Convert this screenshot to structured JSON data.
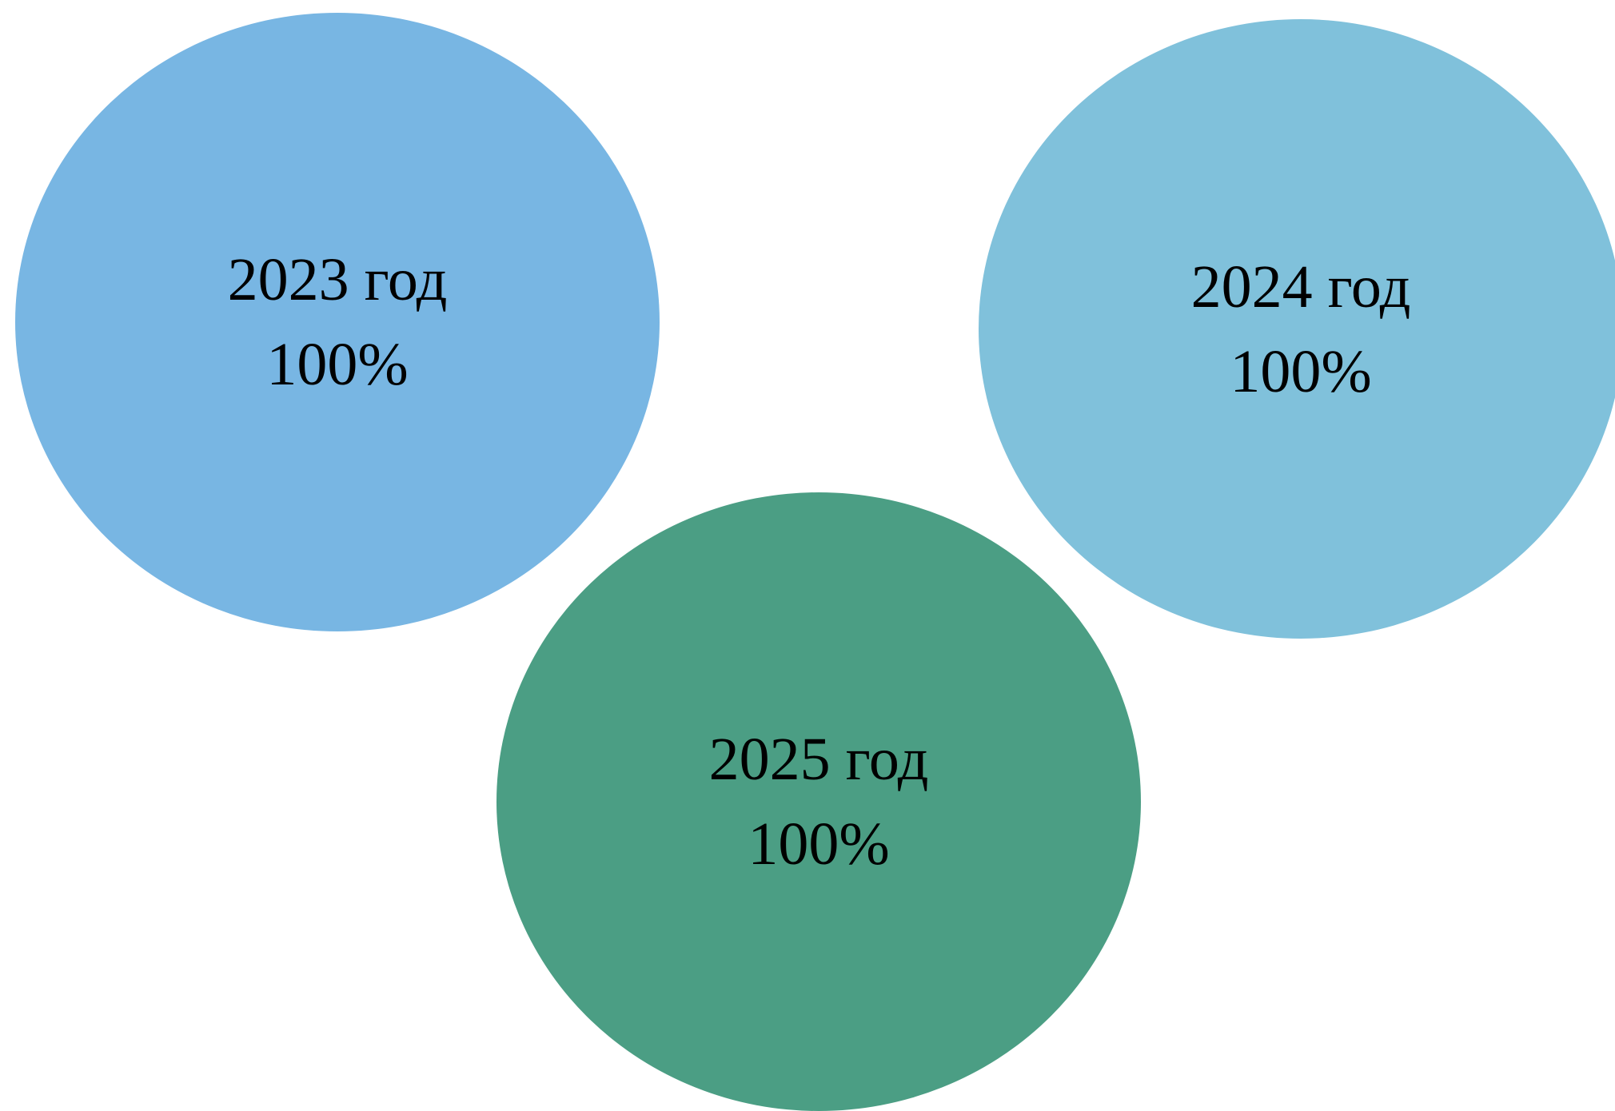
{
  "items": [
    {
      "year_label": "2023 год",
      "percent_label": "100%",
      "color": "#78b6e3"
    },
    {
      "year_label": "2024 год",
      "percent_label": "100%",
      "color": "#80c1db"
    },
    {
      "year_label": "2025 год",
      "percent_label": "100%",
      "color": "#4b9e84"
    }
  ]
}
